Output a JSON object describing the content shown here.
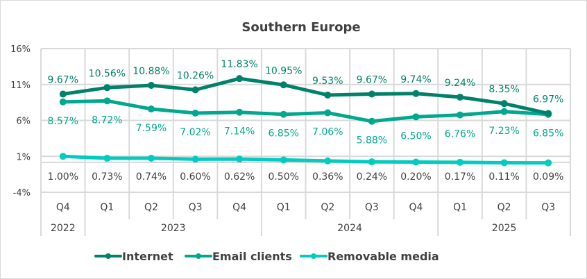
{
  "chart_data": {
    "type": "line",
    "title": "Southern Europe",
    "xlabel": "",
    "ylabel": "",
    "ylim": [
      -4,
      16
    ],
    "yticks": [
      "16%",
      "11%",
      "6%",
      "1%",
      "-4%"
    ],
    "ytick_values": [
      16,
      11,
      6,
      1,
      -4
    ],
    "grid": true,
    "legend_position": "bottom",
    "categories": [
      "Q4",
      "Q1",
      "Q2",
      "Q3",
      "Q4",
      "Q1",
      "Q2",
      "Q3",
      "Q4",
      "Q1",
      "Q2",
      "Q3"
    ],
    "year_groups": [
      {
        "label": "2022",
        "span": 1
      },
      {
        "label": "2023",
        "span": 4
      },
      {
        "label": "2024",
        "span": 4
      },
      {
        "label": "2025",
        "span": 3
      }
    ],
    "series": [
      {
        "name": "Internet",
        "color": "#00826a",
        "values": [
          9.67,
          10.56,
          10.88,
          10.26,
          11.83,
          10.95,
          9.53,
          9.67,
          9.74,
          9.24,
          8.35,
          6.97
        ],
        "labels": [
          "9.67%",
          "10.56%",
          "10.88%",
          "10.26%",
          "11.83%",
          "10.95%",
          "9.53%",
          "9.67%",
          "9.74%",
          "9.24%",
          "8.35%",
          "6.97%"
        ]
      },
      {
        "name": "Email clients",
        "color": "#00a88e",
        "values": [
          8.57,
          8.72,
          7.59,
          7.02,
          7.14,
          6.85,
          7.06,
          5.88,
          6.5,
          6.76,
          7.23,
          6.85
        ],
        "labels": [
          "8.57%",
          "8.72%",
          "7.59%",
          "7.02%",
          "7.14%",
          "6.85%",
          "7.06%",
          "5.88%",
          "6.50%",
          "6.76%",
          "7.23%",
          "6.85%"
        ]
      },
      {
        "name": "Removable media",
        "color": "#00ccc0",
        "values": [
          1.0,
          0.73,
          0.74,
          0.6,
          0.62,
          0.5,
          0.36,
          0.24,
          0.2,
          0.17,
          0.11,
          0.09
        ],
        "labels": [
          "1.00%",
          "0.73%",
          "0.74%",
          "0.60%",
          "0.62%",
          "0.50%",
          "0.36%",
          "0.24%",
          "0.20%",
          "0.17%",
          "0.11%",
          "0.09%"
        ]
      }
    ]
  },
  "colors": {
    "grid": "#d9d9d9",
    "text": "#404040",
    "removable_label": "#404040"
  }
}
